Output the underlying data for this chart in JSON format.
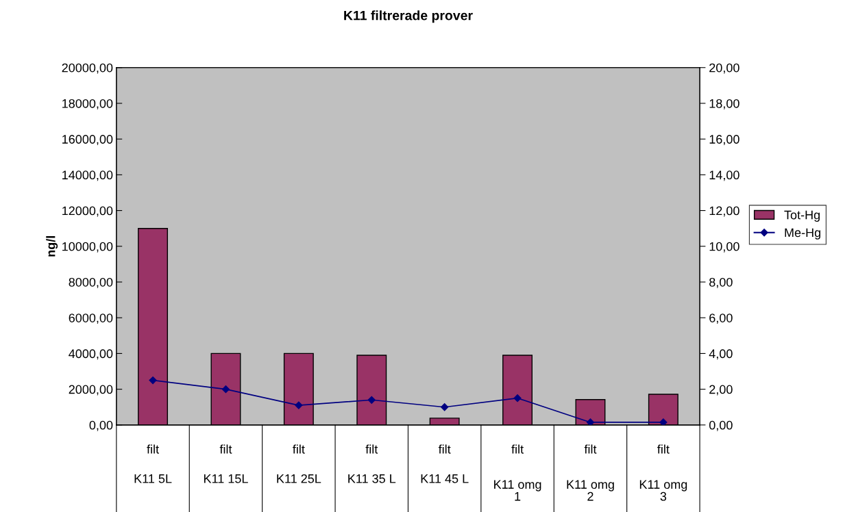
{
  "chart_data": {
    "type": "bar",
    "title": "K11 filtrerade prover",
    "ylabel": "ng/l",
    "categories": [
      "filt\nK11 5L",
      "filt\nK11 15L",
      "filt\nK11 25L",
      "filt\nK11 35 L",
      "filt\nK11 45 L",
      "filt\nK11 omg\n1",
      "filt\nK11 omg\n2",
      "filt\nK11 omg\n3"
    ],
    "series": [
      {
        "name": "Tot-Hg",
        "color": "#993366",
        "values": [
          11000,
          4000,
          4000,
          3900,
          380,
          3900,
          1420,
          1720
        ]
      },
      {
        "name": "Me-Hg",
        "type": "line",
        "axis": "y2",
        "color": "#000080",
        "marker": "diamond",
        "values": [
          2.5,
          2.0,
          1.1,
          1.4,
          1.0,
          1.5,
          0.15,
          0.15
        ]
      }
    ],
    "ylim": [
      0,
      20000
    ],
    "yticks": [
      {
        "value": 0,
        "label": "0,00"
      },
      {
        "value": 2000,
        "label": "2000,00"
      },
      {
        "value": 4000,
        "label": "4000,00"
      },
      {
        "value": 6000,
        "label": "6000,00"
      },
      {
        "value": 8000,
        "label": "8000,00"
      },
      {
        "value": 10000,
        "label": "10000,00"
      },
      {
        "value": 12000,
        "label": "12000,00"
      },
      {
        "value": 14000,
        "label": "14000,00"
      },
      {
        "value": 16000,
        "label": "16000,00"
      },
      {
        "value": 18000,
        "label": "18000,00"
      },
      {
        "value": 20000,
        "label": "20000,00"
      }
    ],
    "y2lim": [
      0,
      20
    ],
    "y2ticks": [
      {
        "value": 0,
        "label": "0,00"
      },
      {
        "value": 2,
        "label": "2,00"
      },
      {
        "value": 4,
        "label": "4,00"
      },
      {
        "value": 6,
        "label": "6,00"
      },
      {
        "value": 8,
        "label": "8,00"
      },
      {
        "value": 10,
        "label": "10,00"
      },
      {
        "value": 12,
        "label": "12,00"
      },
      {
        "value": 14,
        "label": "14,00"
      },
      {
        "value": 16,
        "label": "16,00"
      },
      {
        "value": 18,
        "label": "18,00"
      },
      {
        "value": 20,
        "label": "20,00"
      }
    ],
    "grid": false,
    "legend": "right"
  }
}
